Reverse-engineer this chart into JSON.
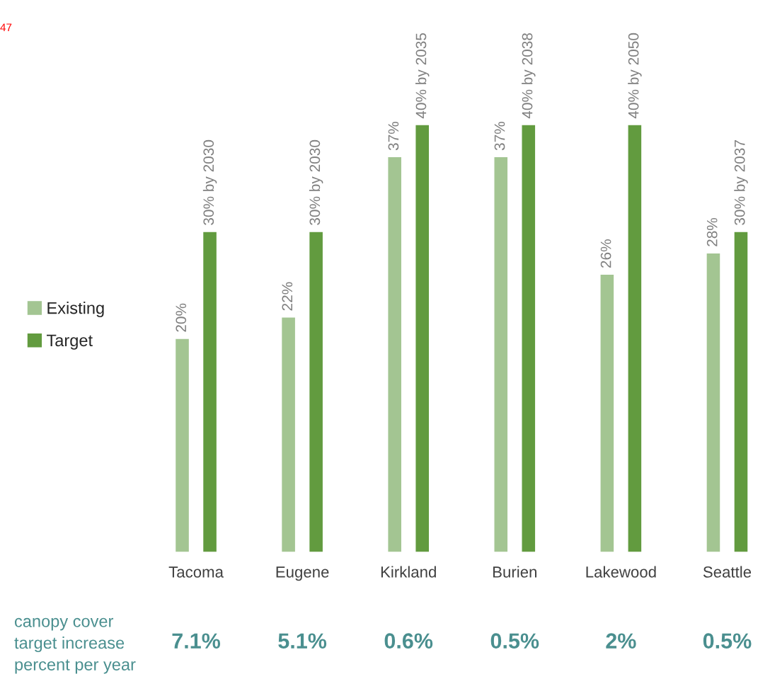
{
  "chart_data": {
    "type": "bar",
    "categories": [
      "Tacoma",
      "Eugene",
      "Kirkland",
      "Burien",
      "Lakewood",
      "Seattle"
    ],
    "series": [
      {
        "name": "Existing",
        "color": "#a3c592",
        "values": [
          20,
          22,
          37,
          37,
          26,
          28
        ],
        "value_labels": [
          "20%",
          "22%",
          "37%",
          "37%",
          "26%",
          "28%"
        ]
      },
      {
        "name": "Target",
        "color": "#629b3f",
        "values": [
          30,
          30,
          40,
          40,
          40,
          30
        ],
        "value_labels": [
          "30% by 2030",
          "30% by 2030",
          "40% by 2035",
          "40% by 2038",
          "40% by 2050",
          "30% by 2037"
        ]
      }
    ],
    "legend": "left",
    "annotations": [
      "47",
      "canopy cover\ntarget increase\npercent per year",
      "7.1%",
      "5.1%",
      "0.6%",
      "0.5%",
      "2%",
      "0.5%"
    ]
  }
}
